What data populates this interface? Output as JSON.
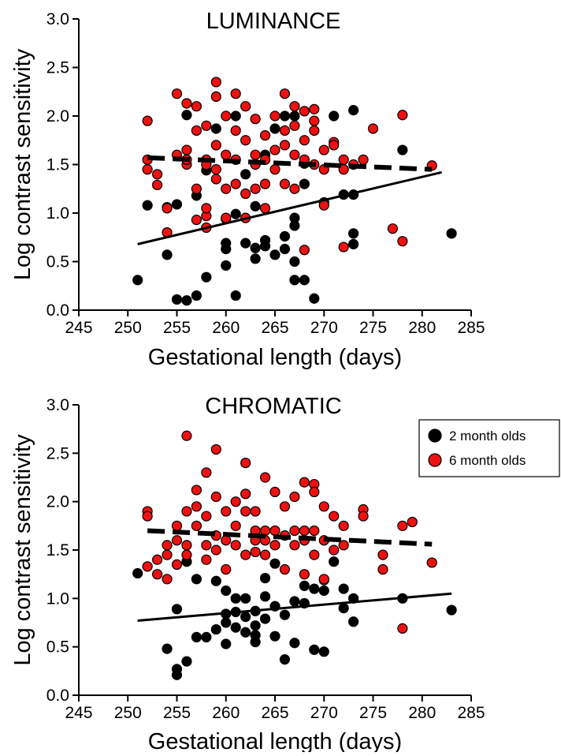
{
  "chart_data": [
    {
      "type": "scatter",
      "title": "LUMINANCE",
      "xlabel": "Gestational length (days)",
      "ylabel": "Log contrast sensitivity",
      "xlim": [
        245,
        285
      ],
      "ylim": [
        0,
        3
      ],
      "xticks": [
        "245",
        "250",
        "255",
        "260",
        "265",
        "270",
        "275",
        "280",
        "285"
      ],
      "yticks": [
        "0.0",
        "0.5",
        "1.0",
        "1.5",
        "2.0",
        "2.5",
        "3.0"
      ],
      "series": [
        {
          "name": "2 month olds",
          "color": "#000000",
          "points": [
            [
              251,
              0.31
            ],
            [
              252,
              1.08
            ],
            [
              254,
              0.57
            ],
            [
              254,
              1.06
            ],
            [
              255,
              0.11
            ],
            [
              255,
              1.09
            ],
            [
              256,
              0.1
            ],
            [
              256,
              2.01
            ],
            [
              257,
              0.15
            ],
            [
              257,
              1.18
            ],
            [
              258,
              0.34
            ],
            [
              258,
              1.44
            ],
            [
              259,
              1.87
            ],
            [
              260,
              0.46
            ],
            [
              260,
              0.63
            ],
            [
              260,
              0.69
            ],
            [
              260,
              0.94
            ],
            [
              261,
              0.15
            ],
            [
              261,
              0.99
            ],
            [
              261,
              2.0
            ],
            [
              262,
              0.69
            ],
            [
              262,
              1.4
            ],
            [
              263,
              0.53
            ],
            [
              263,
              0.64
            ],
            [
              263,
              1.07
            ],
            [
              264,
              0.66
            ],
            [
              264,
              0.72
            ],
            [
              264,
              1.6
            ],
            [
              265,
              0.57
            ],
            [
              265,
              1.87
            ],
            [
              266,
              0.63
            ],
            [
              266,
              0.76
            ],
            [
              266,
              2.0
            ],
            [
              267,
              0.31
            ],
            [
              267,
              0.5
            ],
            [
              267,
              0.87
            ],
            [
              267,
              0.95
            ],
            [
              267,
              2.0
            ],
            [
              268,
              0.31
            ],
            [
              268,
              1.3
            ],
            [
              268,
              1.51
            ],
            [
              269,
              0.12
            ],
            [
              270,
              1.11
            ],
            [
              271,
              2.0
            ],
            [
              272,
              1.19
            ],
            [
              273,
              0.68
            ],
            [
              273,
              0.79
            ],
            [
              273,
              1.19
            ],
            [
              273,
              2.06
            ],
            [
              278,
              1.65
            ],
            [
              283,
              0.79
            ]
          ]
        },
        {
          "name": "6 month olds",
          "color": "#ee1111",
          "points": [
            [
              252,
              1.95
            ],
            [
              252,
              1.45
            ],
            [
              252,
              1.55
            ],
            [
              253,
              1.4
            ],
            [
              253,
              1.29
            ],
            [
              254,
              1.05
            ],
            [
              254,
              0.8
            ],
            [
              255,
              1.6
            ],
            [
              255,
              2.23
            ],
            [
              256,
              1.65
            ],
            [
              256,
              2.13
            ],
            [
              256,
              1.5
            ],
            [
              256,
              1.55
            ],
            [
              257,
              2.1
            ],
            [
              257,
              1.85
            ],
            [
              257,
              1.25
            ],
            [
              257,
              0.93
            ],
            [
              258,
              1.9
            ],
            [
              258,
              1.55
            ],
            [
              258,
              1.5
            ],
            [
              258,
              0.97
            ],
            [
              258,
              1.05
            ],
            [
              258,
              0.85
            ],
            [
              259,
              2.35
            ],
            [
              259,
              2.2
            ],
            [
              259,
              1.7
            ],
            [
              259,
              1.45
            ],
            [
              259,
              1.35
            ],
            [
              260,
              2.0
            ],
            [
              260,
              1.6
            ],
            [
              260,
              1.25
            ],
            [
              260,
              0.95
            ],
            [
              261,
              2.23
            ],
            [
              261,
              1.85
            ],
            [
              261,
              1.55
            ],
            [
              261,
              1.3
            ],
            [
              262,
              2.1
            ],
            [
              262,
              1.75
            ],
            [
              262,
              1.2
            ],
            [
              262,
              0.95
            ],
            [
              263,
              1.97
            ],
            [
              263,
              1.6
            ],
            [
              263,
              1.5
            ],
            [
              263,
              1.25
            ],
            [
              264,
              1.8
            ],
            [
              264,
              1.55
            ],
            [
              264,
              1.3
            ],
            [
              264,
              1.05
            ],
            [
              265,
              2.0
            ],
            [
              265,
              1.65
            ],
            [
              265,
              1.45
            ],
            [
              266,
              2.23
            ],
            [
              266,
              1.85
            ],
            [
              266,
              1.7
            ],
            [
              266,
              1.3
            ],
            [
              267,
              2.1
            ],
            [
              267,
              1.9
            ],
            [
              267,
              1.6
            ],
            [
              267,
              1.25
            ],
            [
              268,
              2.05
            ],
            [
              268,
              1.75
            ],
            [
              268,
              1.55
            ],
            [
              268,
              0.62
            ],
            [
              269,
              2.07
            ],
            [
              269,
              1.95
            ],
            [
              269,
              1.85
            ],
            [
              269,
              1.5
            ],
            [
              270,
              1.65
            ],
            [
              270,
              1.45
            ],
            [
              270,
              1.08
            ],
            [
              271,
              1.73
            ],
            [
              271,
              1.7
            ],
            [
              272,
              1.55
            ],
            [
              272,
              1.45
            ],
            [
              272,
              0.65
            ],
            [
              273,
              1.5
            ],
            [
              274,
              1.55
            ],
            [
              275,
              1.87
            ],
            [
              277,
              0.84
            ],
            [
              278,
              2.01
            ],
            [
              278,
              0.71
            ],
            [
              281,
              1.49
            ]
          ]
        }
      ],
      "fit_lines": [
        {
          "series": "2 month olds",
          "style": "solid",
          "x": [
            251,
            282
          ],
          "y": [
            0.68,
            1.42
          ]
        },
        {
          "series": "6 month olds",
          "style": "dashed",
          "x": [
            252,
            281
          ],
          "y": [
            1.57,
            1.45
          ]
        }
      ]
    },
    {
      "type": "scatter",
      "title": "CHROMATIC",
      "xlabel": "Gestational length (days)",
      "ylabel": "Log contrast sensitivity",
      "xlim": [
        245,
        285
      ],
      "ylim": [
        0,
        3
      ],
      "xticks": [
        "245",
        "250",
        "255",
        "260",
        "265",
        "270",
        "275",
        "280",
        "285"
      ],
      "yticks": [
        "0.0",
        "0.5",
        "1.0",
        "1.5",
        "2.0",
        "2.5",
        "3.0"
      ],
      "legend": {
        "placement": "top-right",
        "entries": [
          "2 month olds",
          "6 month olds"
        ]
      },
      "series": [
        {
          "name": "2 month olds",
          "color": "#000000",
          "points": [
            [
              251,
              1.26
            ],
            [
              254,
              0.48
            ],
            [
              255,
              0.27
            ],
            [
              255,
              0.21
            ],
            [
              255,
              0.89
            ],
            [
              256,
              0.35
            ],
            [
              256,
              1.38
            ],
            [
              257,
              0.6
            ],
            [
              257,
              1.2
            ],
            [
              258,
              0.6
            ],
            [
              259,
              0.68
            ],
            [
              259,
              1.18
            ],
            [
              260,
              0.53
            ],
            [
              260,
              0.75
            ],
            [
              260,
              0.84
            ],
            [
              260,
              1.08
            ],
            [
              261,
              0.7
            ],
            [
              261,
              0.86
            ],
            [
              261,
              1.0
            ],
            [
              262,
              1.0
            ],
            [
              262,
              0.81
            ],
            [
              262,
              0.65
            ],
            [
              263,
              0.55
            ],
            [
              263,
              0.62
            ],
            [
              263,
              0.72
            ],
            [
              263,
              0.87
            ],
            [
              264,
              0.79
            ],
            [
              264,
              1.02
            ],
            [
              264,
              1.21
            ],
            [
              265,
              0.61
            ],
            [
              265,
              0.92
            ],
            [
              265,
              1.36
            ],
            [
              266,
              0.37
            ],
            [
              266,
              0.83
            ],
            [
              267,
              0.54
            ],
            [
              267,
              0.97
            ],
            [
              268,
              0.95
            ],
            [
              268,
              1.13
            ],
            [
              269,
              0.47
            ],
            [
              269,
              1.1
            ],
            [
              270,
              0.45
            ],
            [
              270,
              1.08
            ],
            [
              270,
              1.19
            ],
            [
              271,
              1.38
            ],
            [
              272,
              0.9
            ],
            [
              272,
              1.1
            ],
            [
              273,
              0.76
            ],
            [
              273,
              1.0
            ],
            [
              278,
              1.0
            ],
            [
              283,
              0.88
            ]
          ]
        },
        {
          "name": "6 month olds",
          "color": "#ee1111",
          "points": [
            [
              252,
              1.9
            ],
            [
              252,
              1.85
            ],
            [
              252,
              1.33
            ],
            [
              253,
              1.4
            ],
            [
              253,
              1.25
            ],
            [
              254,
              1.55
            ],
            [
              254,
              1.45
            ],
            [
              254,
              1.2
            ],
            [
              255,
              1.75
            ],
            [
              255,
              1.35
            ],
            [
              255,
              1.6
            ],
            [
              256,
              2.68
            ],
            [
              256,
              1.9
            ],
            [
              256,
              1.55
            ],
            [
              256,
              1.45
            ],
            [
              257,
              2.12
            ],
            [
              257,
              1.95
            ],
            [
              257,
              1.75
            ],
            [
              258,
              2.3
            ],
            [
              258,
              1.85
            ],
            [
              258,
              1.55
            ],
            [
              258,
              1.4
            ],
            [
              259,
              2.54
            ],
            [
              259,
              2.05
            ],
            [
              259,
              1.65
            ],
            [
              259,
              1.5
            ],
            [
              260,
              1.9
            ],
            [
              260,
              1.6
            ],
            [
              260,
              1.3
            ],
            [
              261,
              2.0
            ],
            [
              261,
              1.75
            ],
            [
              261,
              1.55
            ],
            [
              262,
              2.4
            ],
            [
              262,
              2.08
            ],
            [
              262,
              1.9
            ],
            [
              262,
              1.45
            ],
            [
              263,
              1.9
            ],
            [
              263,
              1.7
            ],
            [
              263,
              1.6
            ],
            [
              263,
              1.48
            ],
            [
              264,
              2.25
            ],
            [
              264,
              1.7
            ],
            [
              264,
              1.6
            ],
            [
              264,
              1.45
            ],
            [
              265,
              2.1
            ],
            [
              265,
              1.7
            ],
            [
              265,
              1.55
            ],
            [
              266,
              1.95
            ],
            [
              266,
              1.65
            ],
            [
              266,
              1.3
            ],
            [
              267,
              2.05
            ],
            [
              267,
              1.7
            ],
            [
              267,
              1.55
            ],
            [
              268,
              2.2
            ],
            [
              268,
              1.7
            ],
            [
              268,
              1.6
            ],
            [
              268,
              1.25
            ],
            [
              269,
              2.18
            ],
            [
              269,
              2.1
            ],
            [
              269,
              1.7
            ],
            [
              269,
              1.45
            ],
            [
              270,
              1.95
            ],
            [
              270,
              1.6
            ],
            [
              270,
              1.2
            ],
            [
              271,
              1.85
            ],
            [
              271,
              1.5
            ],
            [
              272,
              1.75
            ],
            [
              272,
              1.55
            ],
            [
              274,
              1.92
            ],
            [
              274,
              1.85
            ],
            [
              276,
              1.45
            ],
            [
              276,
              1.3
            ],
            [
              278,
              1.75
            ],
            [
              278,
              0.69
            ],
            [
              279,
              1.79
            ],
            [
              281,
              1.37
            ]
          ]
        }
      ],
      "fit_lines": [
        {
          "series": "2 month olds",
          "style": "solid",
          "x": [
            251,
            283
          ],
          "y": [
            0.77,
            1.05
          ]
        },
        {
          "series": "6 month olds",
          "style": "dashed",
          "x": [
            252,
            281
          ],
          "y": [
            1.7,
            1.56
          ]
        }
      ]
    }
  ]
}
